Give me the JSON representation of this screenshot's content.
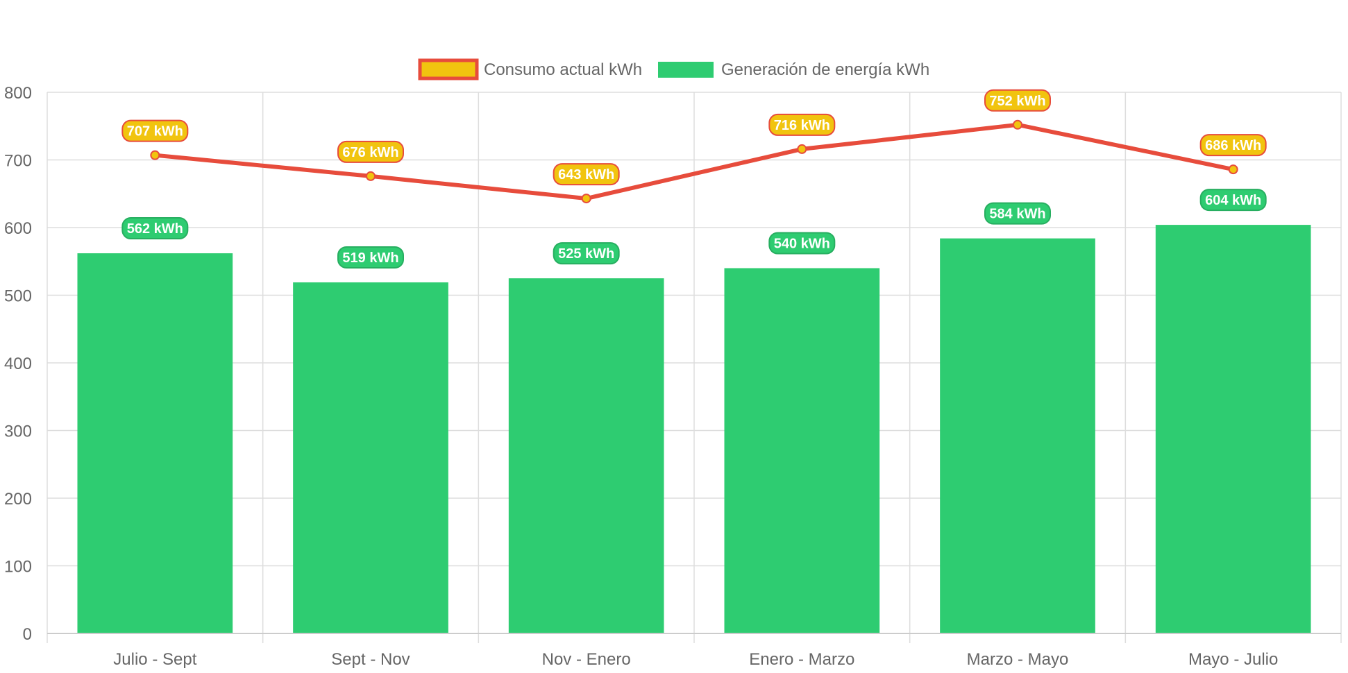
{
  "chart_data": {
    "type": "bar",
    "categories": [
      "Julio - Sept",
      "Sept - Nov",
      "Nov - Enero",
      "Enero - Marzo",
      "Marzo - Mayo",
      "Mayo - Julio"
    ],
    "series": [
      {
        "name": "Consumo actual kWh",
        "type": "line",
        "values": [
          707,
          676,
          643,
          716,
          752,
          686
        ],
        "labels": [
          "707 kWh",
          "676 kWh",
          "643 kWh",
          "716 kWh",
          "752 kWh",
          "686 kWh"
        ],
        "line_color": "#e74c3c",
        "fill_color": "#f1c40f"
      },
      {
        "name": "Generación de energía kWh",
        "type": "bar",
        "values": [
          562,
          519,
          525,
          540,
          584,
          604
        ],
        "labels": [
          "562 kWh",
          "519 kWh",
          "525 kWh",
          "540 kWh",
          "584 kWh",
          "604 kWh"
        ],
        "fill_color": "#2ecc71"
      }
    ],
    "ylim": [
      0,
      800
    ],
    "yticks": [
      "0",
      "100",
      "200",
      "300",
      "400",
      "500",
      "600",
      "700",
      "800"
    ],
    "grid": true,
    "legend_position": "top-center"
  }
}
